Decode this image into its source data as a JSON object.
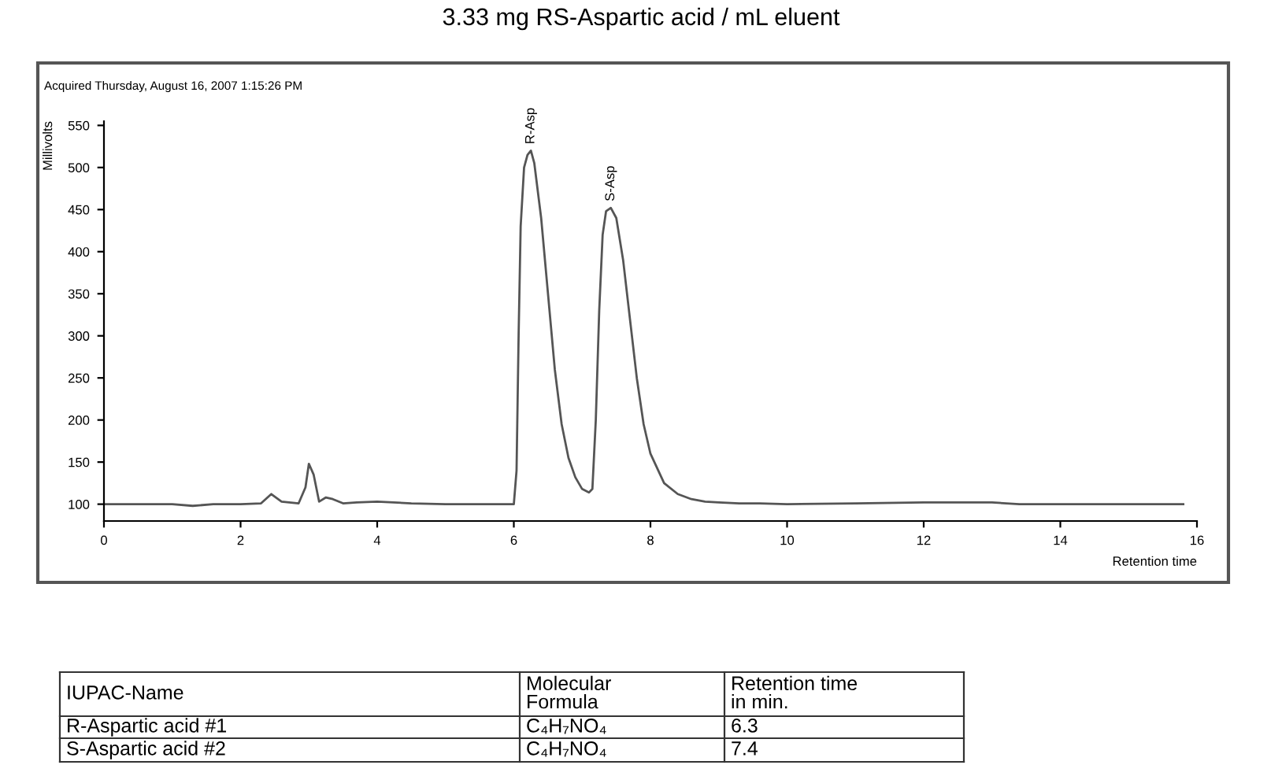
{
  "chart_data": {
    "type": "line",
    "title": "3.33 mg RS-Aspartic acid / mL eluent",
    "xlabel": "Retention time",
    "ylabel": "Millivolts",
    "xlim": [
      0,
      16
    ],
    "ylim": [
      80,
      555
    ],
    "xticks": [
      0,
      2,
      4,
      6,
      8,
      10,
      12,
      14,
      16
    ],
    "yticks": [
      100,
      150,
      200,
      250,
      300,
      350,
      400,
      450,
      500,
      550
    ],
    "grid": false,
    "legend": false,
    "marker": "none",
    "line_style": "solid",
    "series": [
      {
        "color": "#555555",
        "x": [
          0,
          1.0,
          1.3,
          1.6,
          2.0,
          2.3,
          2.45,
          2.6,
          2.85,
          2.95,
          3.0,
          3.07,
          3.15,
          3.25,
          3.35,
          3.5,
          3.7,
          4.0,
          4.5,
          5.0,
          5.5,
          6.0,
          6.04,
          6.07,
          6.1,
          6.15,
          6.2,
          6.25,
          6.3,
          6.4,
          6.5,
          6.6,
          6.7,
          6.8,
          6.9,
          7.0,
          7.1,
          7.15,
          7.2,
          7.25,
          7.3,
          7.35,
          7.42,
          7.5,
          7.6,
          7.7,
          7.8,
          7.9,
          8.0,
          8.2,
          8.4,
          8.6,
          8.8,
          9.0,
          9.3,
          9.6,
          10,
          11,
          12,
          13,
          13.4,
          14,
          15,
          15.8
        ],
        "values": [
          100,
          100,
          98,
          100,
          100,
          101,
          112,
          103,
          101,
          120,
          148,
          135,
          103,
          108,
          106,
          101,
          102,
          103,
          101,
          100,
          100,
          100,
          140,
          300,
          430,
          500,
          515,
          520,
          505,
          440,
          350,
          260,
          195,
          155,
          132,
          118,
          114,
          118,
          200,
          330,
          420,
          448,
          452,
          440,
          390,
          320,
          250,
          195,
          160,
          125,
          112,
          106,
          103,
          102,
          101,
          101,
          100,
          101,
          102,
          102,
          100,
          100,
          100,
          100
        ]
      }
    ],
    "annotations": [
      "Acquired Thursday, August 16, 2007 1:15:26 PM",
      {
        "text": "R-Asp",
        "x": 6.25,
        "y": 520
      },
      {
        "text": "S-Asp",
        "x": 7.42,
        "y": 452
      },
      "IUPAC-Name",
      "Molecular\nFormula",
      "Retention time\nin min.",
      "R-Aspartic acid #1",
      "C₄H₇NO₄",
      "6.3",
      "S-Aspartic acid #2",
      "C₄H₇NO₄",
      "7.4"
    ]
  }
}
